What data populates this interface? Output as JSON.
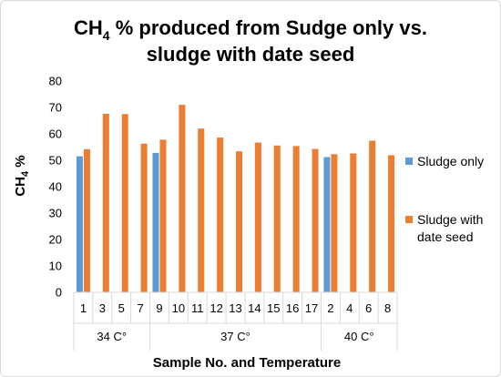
{
  "chart_data": {
    "type": "bar",
    "title": {
      "line1_prefix": "CH",
      "line1_sub": "4",
      "line1_suffix": " % produced from Sudge only vs.",
      "line2": "sludge with date seed"
    },
    "ylabel": {
      "main": "CH",
      "sub": "4",
      "suffix": " %"
    },
    "xlabel": "Sample No. and Temperature",
    "ylim": [
      0,
      80
    ],
    "yticks": [
      "0",
      "10",
      "20",
      "30",
      "40",
      "50",
      "60",
      "70",
      "80"
    ],
    "grid": false,
    "legend_position": "right",
    "categories": [
      "1",
      "3",
      "5",
      "7",
      "9",
      "10",
      "11",
      "12",
      "13",
      "14",
      "15",
      "16",
      "17",
      "2",
      "4",
      "6",
      "8"
    ],
    "groups": [
      {
        "label": "34 C°",
        "count": 4
      },
      {
        "label": "37 C°",
        "count": 9
      },
      {
        "label": "40 C°",
        "count": 4
      }
    ],
    "series": [
      {
        "name": "Sludge only",
        "color": "#5b9bd5",
        "values": [
          51.5,
          null,
          null,
          null,
          52.8,
          null,
          null,
          null,
          null,
          null,
          null,
          null,
          null,
          51.2,
          null,
          null,
          null
        ]
      },
      {
        "name": "Sludge with date seed",
        "color": "#ed7d31",
        "values": [
          54.2,
          67.6,
          67.5,
          56.3,
          57.8,
          71.0,
          62.0,
          58.6,
          53.4,
          56.7,
          55.6,
          55.4,
          54.3,
          52.3,
          52.6,
          57.4,
          51.9
        ]
      }
    ]
  }
}
